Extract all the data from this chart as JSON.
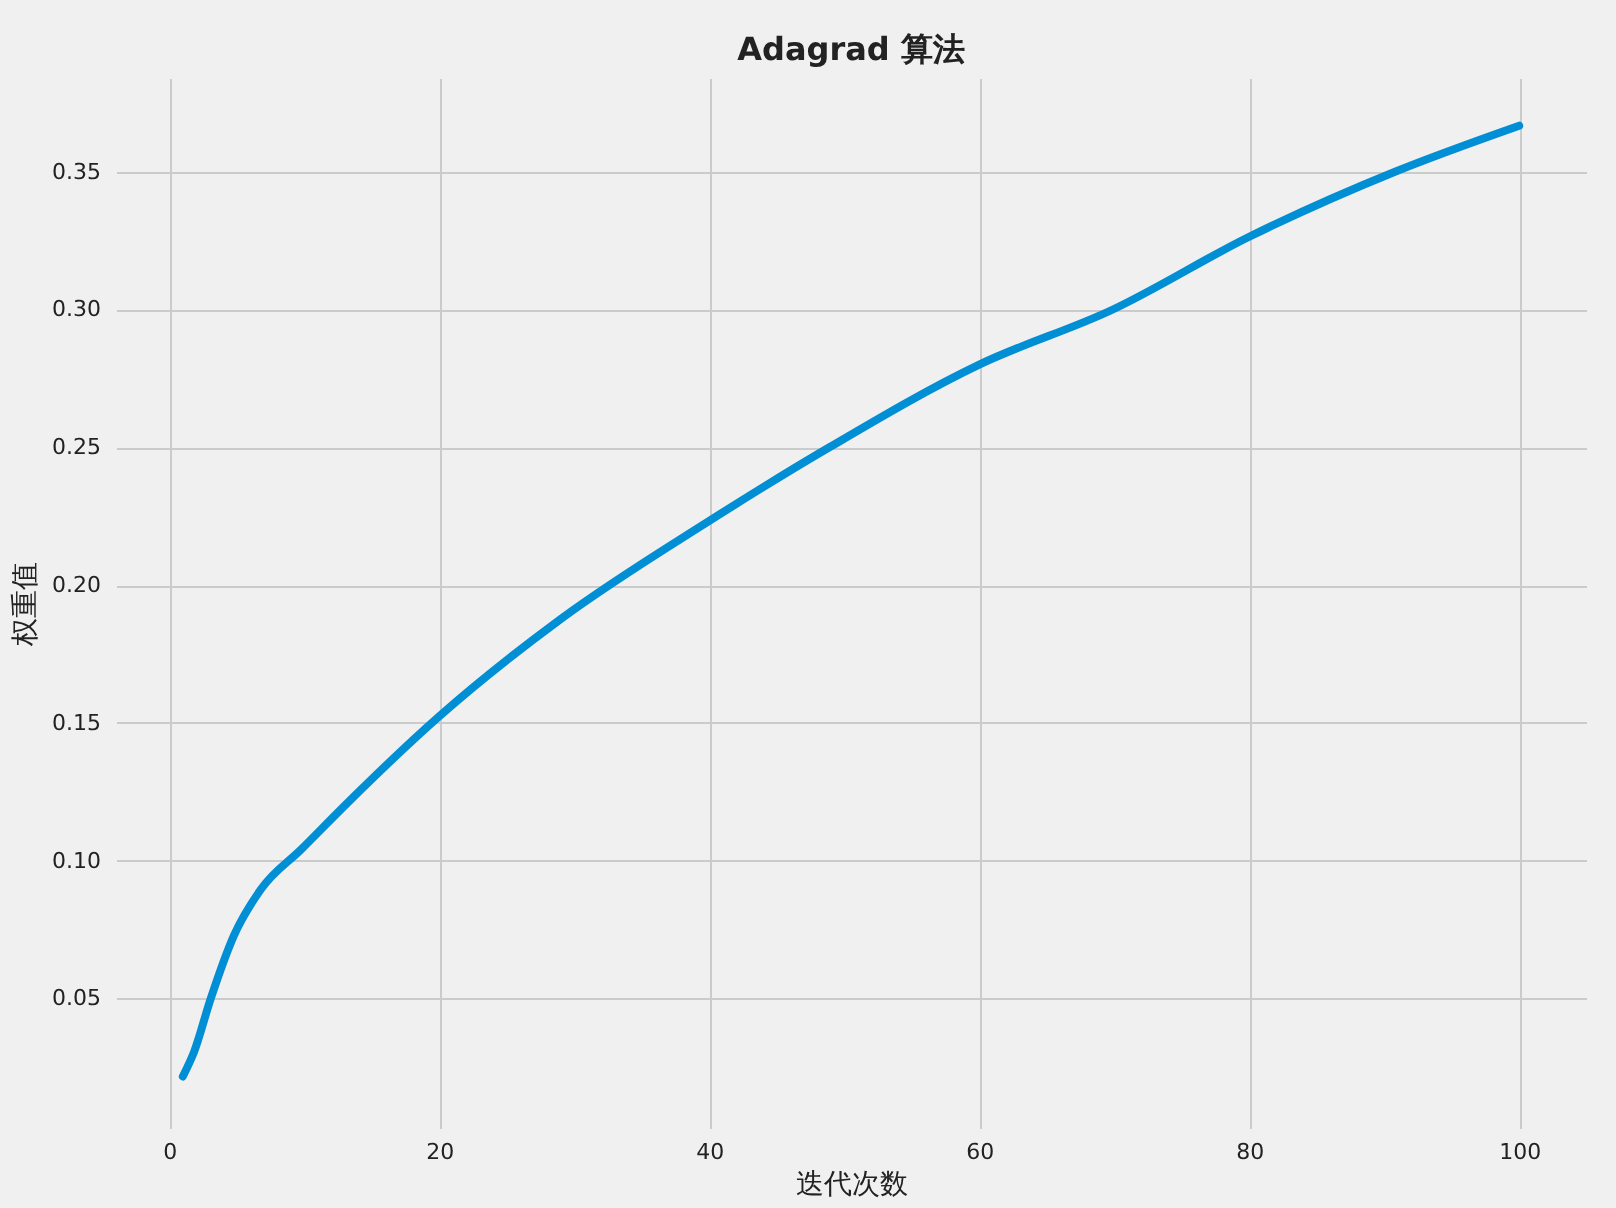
{
  "chart_data": {
    "type": "line",
    "title": "Adagrad 算法",
    "xlabel": "迭代次数",
    "ylabel": "权重值",
    "x": [
      1,
      1.84,
      3.07,
      4.8,
      6.8,
      9.75,
      13.2,
      20,
      29,
      40,
      48.9,
      60,
      69.9,
      80,
      90.8,
      100
    ],
    "series": [
      {
        "color": "#008fd5",
        "values": [
          0.0217,
          0.0307,
          0.05,
          0.073,
          0.0897,
          0.104,
          0.121,
          0.1524,
          0.1877,
          0.2233,
          0.25,
          0.28,
          0.3,
          0.3264,
          0.35,
          0.3667
        ]
      }
    ],
    "xlim": [
      -3.95,
      104.95
    ],
    "ylim": [
      0.003,
      0.384
    ],
    "xticks": [
      0,
      20,
      40,
      60,
      80,
      100
    ],
    "yticks": [
      0.05,
      {
        "value": 0.1,
        "label": "0.10"
      },
      0.15,
      {
        "value": 0.2,
        "label": "0.20"
      },
      0.25,
      {
        "value": 0.3,
        "label": "0.30"
      },
      0.35
    ],
    "grid": true,
    "legend": false,
    "marker": "none",
    "line_style": "solid"
  }
}
